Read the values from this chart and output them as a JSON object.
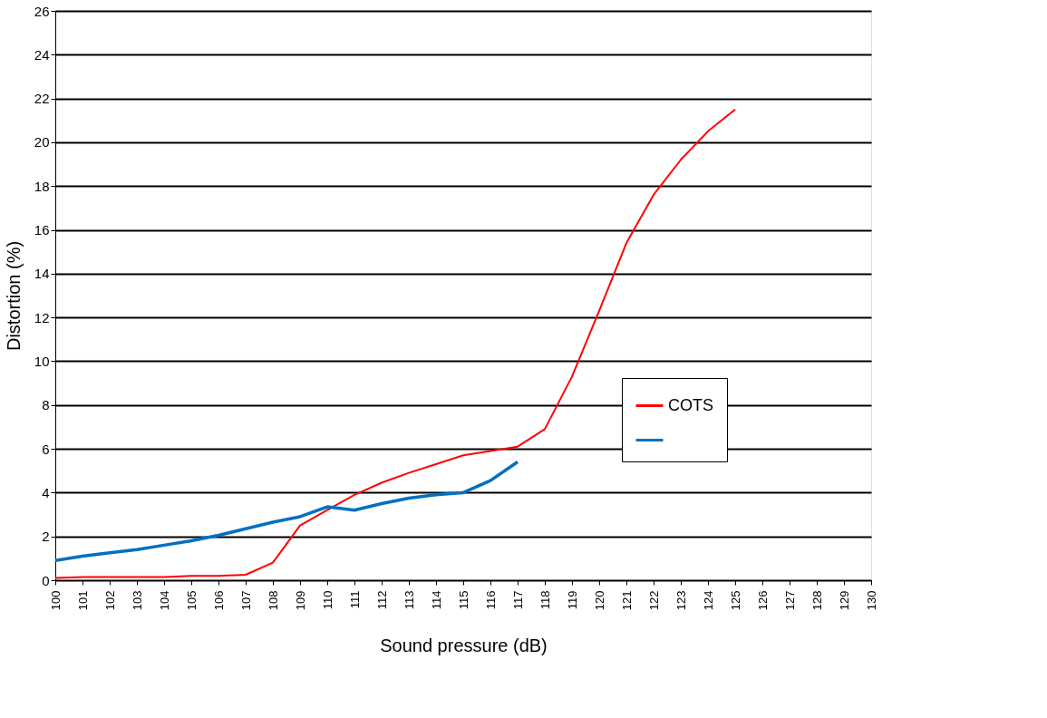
{
  "chart_data": {
    "type": "line",
    "xlabel": "Sound pressure (dB)",
    "ylabel": "Distortion (%)",
    "x": [
      100,
      101,
      102,
      103,
      104,
      105,
      106,
      107,
      108,
      109,
      110,
      111,
      112,
      113,
      114,
      115,
      116,
      117,
      118,
      119,
      120,
      121,
      122,
      123,
      124,
      125
    ],
    "series": [
      {
        "name": "COTS",
        "color": "#ff0000",
        "values": [
          0.1,
          0.15,
          0.15,
          0.15,
          0.15,
          0.2,
          0.2,
          0.25,
          0.8,
          2.5,
          3.2,
          3.9,
          4.45,
          4.9,
          5.3,
          5.7,
          5.9,
          6.1,
          6.9,
          9.3,
          12.3,
          15.4,
          17.6,
          19.2,
          20.5,
          21.5
        ]
      },
      {
        "color": "#0070c0",
        "x": [
          100,
          101,
          102,
          103,
          104,
          105,
          106,
          107,
          108,
          109,
          110,
          111,
          112,
          113,
          114,
          115,
          116,
          117
        ],
        "values": [
          0.9,
          1.1,
          1.25,
          1.4,
          1.6,
          1.8,
          2.05,
          2.35,
          2.65,
          2.9,
          3.35,
          3.2,
          3.5,
          3.75,
          3.9,
          4.0,
          4.55,
          5.4
        ]
      }
    ],
    "xlim": [
      100,
      130
    ],
    "xticks": [
      100,
      101,
      102,
      103,
      104,
      105,
      106,
      107,
      108,
      109,
      110,
      111,
      112,
      113,
      114,
      115,
      116,
      117,
      118,
      119,
      120,
      121,
      122,
      123,
      124,
      125,
      126,
      127,
      128,
      129,
      130
    ],
    "ylim": [
      0,
      26
    ],
    "yticks": [
      0,
      2,
      4,
      6,
      8,
      10,
      12,
      14,
      16,
      18,
      20,
      22,
      24,
      26
    ],
    "grid": "y",
    "legend": "right",
    "marker": "none",
    "line_style": "solid"
  }
}
